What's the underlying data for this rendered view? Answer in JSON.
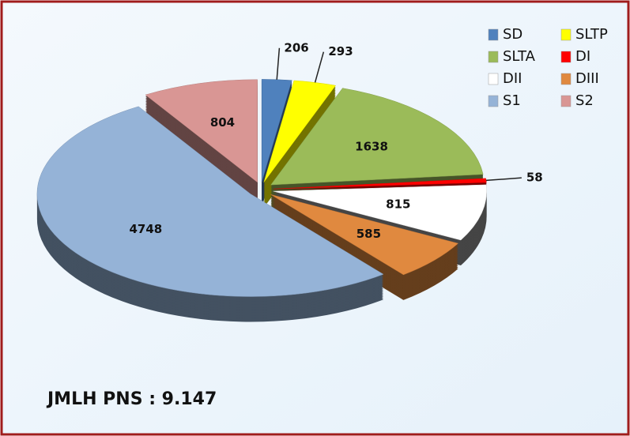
{
  "chart_data": {
    "type": "pie",
    "categories": [
      "SD",
      "SLTP",
      "SLTA",
      "DI",
      "DII",
      "DIII",
      "S1",
      "S2"
    ],
    "values": [
      206,
      293,
      1638,
      58,
      815,
      585,
      4748,
      804
    ],
    "colors": [
      "#4f81bd",
      "#ffff00",
      "#9bbb59",
      "#ff0000",
      "#ffffff",
      "#e0893f",
      "#95b3d7",
      "#d99694"
    ],
    "legend": "top-right",
    "annotation": "JMLH PNS : 9.147"
  }
}
